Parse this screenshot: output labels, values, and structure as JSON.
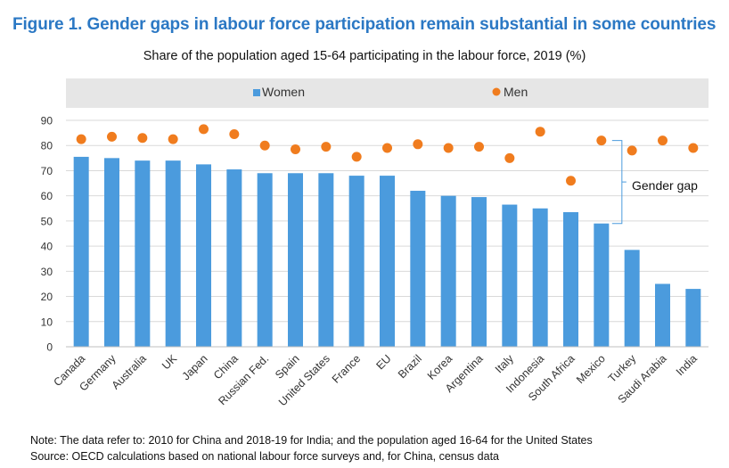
{
  "figure": {
    "title": "Figure 1. Gender gaps in labour force participation remain substantial in some countries",
    "subtitle": "Share of the population aged 15-64 participating in the labour force, 2019 (%)",
    "note": "Note: The data refer to: 2010 for China and 2018-19 for India; and the population aged 16-64 for the United States",
    "source": "Source: OECD calculations based on national labour force surveys and, for China, census data"
  },
  "chart_data": {
    "type": "bar",
    "title": "Share of the population aged 15-64 participating in the labour force, 2019 (%)",
    "categories": [
      "Canada",
      "Germany",
      "Australia",
      "UK",
      "Japan",
      "China",
      "Russian Fed.",
      "Spain",
      "United States",
      "France",
      "EU",
      "Brazil",
      "Korea",
      "Argentina",
      "Italy",
      "Indonesia",
      "South Africa",
      "Mexico",
      "Turkey",
      "Saudi Arabia",
      "India"
    ],
    "series": [
      {
        "name": "Women",
        "mark": "bar",
        "color": "#4b9bdd",
        "values": [
          75.5,
          75,
          74,
          74,
          72.5,
          70.5,
          69,
          69,
          69,
          68,
          68,
          62,
          60,
          59.5,
          56.5,
          55,
          53.5,
          49,
          38.5,
          25,
          23
        ]
      },
      {
        "name": "Men",
        "mark": "dot",
        "color": "#f07c1e",
        "values": [
          82.5,
          83.5,
          83,
          82.5,
          86.5,
          84.5,
          80,
          78.5,
          79.5,
          75.5,
          79,
          80.5,
          79,
          79.5,
          75,
          85.5,
          66,
          82,
          78,
          82,
          79
        ]
      }
    ],
    "ylim": [
      0,
      90
    ],
    "yticks": [
      0,
      10,
      20,
      30,
      40,
      50,
      60,
      70,
      80,
      90
    ],
    "grid": true,
    "legend_position": "top",
    "annotation": {
      "text": "Gender gap",
      "category": "Mexico"
    }
  }
}
